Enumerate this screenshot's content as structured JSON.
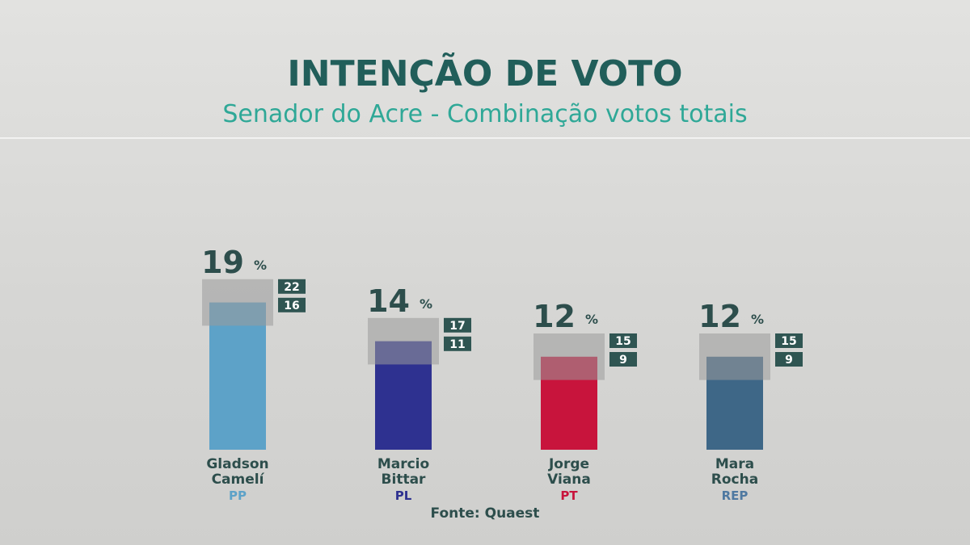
{
  "chart_data": {
    "type": "bar",
    "title": "INTENÇÃO DE VOTO",
    "subtitle": "Senador do Acre - Combinação votos totais",
    "unit": "%",
    "ylim": [
      0,
      25
    ],
    "categories": [
      {
        "name_line1": "Gladson",
        "name_line2": "Camelí",
        "party": "PP",
        "value": 19,
        "upper": 22,
        "lower": 16,
        "color": "#5da2c8",
        "party_color": "#5da2c8"
      },
      {
        "name_line1": "Marcio",
        "name_line2": "Bittar",
        "party": "PL",
        "value": 14,
        "upper": 17,
        "lower": 11,
        "color": "#2e3190",
        "party_color": "#2e3190"
      },
      {
        "name_line1": "Jorge",
        "name_line2": "Viana",
        "party": "PT",
        "value": 12,
        "upper": 15,
        "lower": 9,
        "color": "#c8143c",
        "party_color": "#c8143c"
      },
      {
        "name_line1": "Mara",
        "name_line2": "Rocha",
        "party": "REP",
        "value": 12,
        "upper": 15,
        "lower": 9,
        "color": "#3e6787",
        "party_color": "#4f79a1"
      }
    ],
    "source": "Fonte: Quaest",
    "grid": false,
    "legend": "none"
  }
}
